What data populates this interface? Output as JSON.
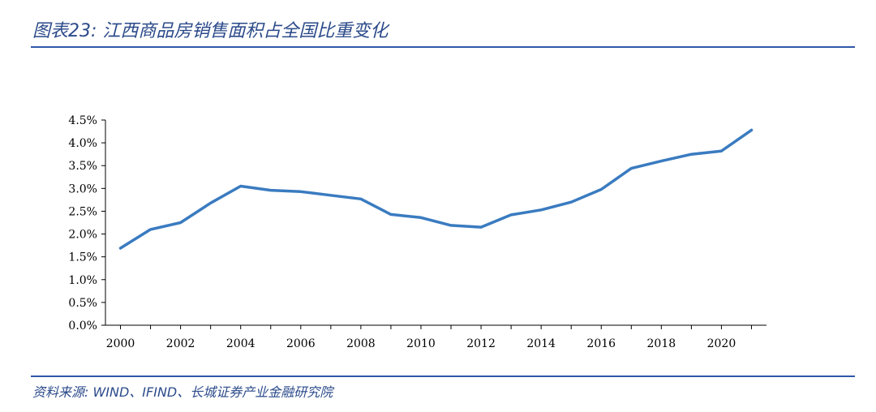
{
  "title": "图表23:  江西商品房销售面积占全国比重变化",
  "source": "资料来源:  WIND、IFIND、长城证券产业金融研究院",
  "chart_data": {
    "type": "line",
    "title": "江西商品房销售面积占全国比重变化",
    "xlabel": "",
    "ylabel": "",
    "ylim": [
      0,
      4.5
    ],
    "y_ticks": [
      "0.0%",
      "0.5%",
      "1.0%",
      "1.5%",
      "2.0%",
      "2.5%",
      "3.0%",
      "3.5%",
      "4.0%",
      "4.5%"
    ],
    "x_ticks": [
      "2000",
      "2002",
      "2004",
      "2006",
      "2008",
      "2010",
      "2012",
      "2014",
      "2016",
      "2018",
      "2020"
    ],
    "color": "#3a7bc0",
    "series": [
      {
        "name": "江西商品房销售面积占全国比重",
        "x": [
          2000,
          2001,
          2002,
          2003,
          2004,
          2005,
          2006,
          2007,
          2008,
          2009,
          2010,
          2011,
          2012,
          2013,
          2014,
          2015,
          2016,
          2017,
          2018,
          2019,
          2020,
          2021
        ],
        "values": [
          1.69,
          2.1,
          2.25,
          2.68,
          3.05,
          2.96,
          2.93,
          2.85,
          2.77,
          2.43,
          2.36,
          2.19,
          2.15,
          2.42,
          2.53,
          2.7,
          2.98,
          3.44,
          3.6,
          3.75,
          3.82,
          4.28
        ]
      }
    ]
  }
}
